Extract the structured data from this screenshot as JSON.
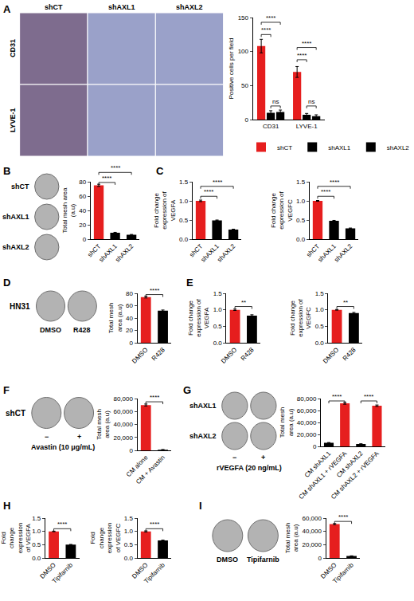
{
  "panel_letters": [
    "A",
    "B",
    "C",
    "D",
    "E",
    "F",
    "G",
    "H",
    "I"
  ],
  "images": [
    {
      "kind": "ihc",
      "rows": [
        "CD31",
        "LYVE-1"
      ],
      "columns": [
        "shCT",
        "shAXL1",
        "shAXL2"
      ]
    },
    {
      "kind": "tube",
      "rows": [
        "shCT",
        "shAXL1",
        "shAXL2"
      ]
    },
    {
      "kind": "tube",
      "side_label": "HN31",
      "columns": [
        "DMSO",
        "R428"
      ]
    },
    {
      "kind": "tube",
      "side_label": "shCT",
      "columns": [
        "−",
        "+"
      ],
      "caption": "Avastin (10 μg/mL)"
    },
    {
      "kind": "tube",
      "rows": [
        "shAXL1",
        "shAXL2"
      ],
      "columns": [
        "−",
        "+"
      ],
      "caption": "rVEGFA (20 ng/mL)"
    },
    {
      "kind": "tube",
      "columns": [
        "DMSO",
        "Tipifarnib"
      ]
    }
  ],
  "chart_data": [
    {
      "type": "bar",
      "categories": [
        "CD31",
        "LYVE-1"
      ],
      "series": [
        {
          "name": "shCT",
          "color": "#e61e1e",
          "values": [
            108,
            70
          ],
          "errors": [
            10,
            8
          ]
        },
        {
          "name": "shAXL1",
          "color": "#000000",
          "values": [
            10,
            7
          ],
          "errors": [
            3,
            2
          ]
        },
        {
          "name": "shAXL2",
          "color": "#000000",
          "values": [
            11,
            5
          ],
          "errors": [
            3,
            2
          ]
        }
      ],
      "legend": "bottom",
      "y_label": "Positive cells per field",
      "ylim": [
        0,
        150
      ],
      "yticks": [
        0,
        50,
        100,
        150
      ],
      "significance": [
        {
          "category": "CD31",
          "from": "shCT",
          "to": "shAXL1",
          "y": 125,
          "text": "****"
        },
        {
          "category": "CD31",
          "from": "shCT",
          "to": "shAXL2",
          "y": 143,
          "text": "****"
        },
        {
          "category": "CD31",
          "from": "shAXL1",
          "to": "shAXL2",
          "y": 20,
          "text": "ns"
        },
        {
          "category": "LYVE-1",
          "from": "shCT",
          "to": "shAXL1",
          "y": 88,
          "text": "****"
        },
        {
          "category": "LYVE-1",
          "from": "shCT",
          "to": "shAXL2",
          "y": 106,
          "text": "****"
        },
        {
          "category": "LYVE-1",
          "from": "shAXL1",
          "to": "shAXL2",
          "y": 20,
          "text": "ns"
        }
      ]
    },
    {
      "type": "bar",
      "categories": [
        "shCT",
        "shAXL1",
        "shAXL2"
      ],
      "values": [
        75,
        9,
        6
      ],
      "errors": [
        1.5,
        0.5,
        0.5
      ],
      "colors": [
        "#e61e1e",
        "#000000",
        "#000000"
      ],
      "y_label": "Total mesh area (a.u)",
      "ylim": [
        0,
        80
      ],
      "yticks": [
        0,
        20,
        40,
        60,
        80
      ],
      "significance": [
        {
          "from": "shCT",
          "to": "shAXL1",
          "y": 79,
          "text": "****"
        },
        {
          "from": "shCT",
          "to": "shAXL2",
          "y": 93,
          "text": "****"
        }
      ]
    },
    {
      "type": "bar",
      "categories": [
        "shCT",
        "shAXL1",
        "shAXL2"
      ],
      "values": [
        1.0,
        0.49,
        0.25
      ],
      "errors": [
        0.02,
        0.01,
        0.01
      ],
      "colors": [
        "#e61e1e",
        "#000000",
        "#000000"
      ],
      "y_label": "Fold change expression of VEGFA",
      "ylim": [
        0,
        1.5
      ],
      "yticks": [
        {
          "value": 0,
          "label": "0.0"
        },
        0.5,
        {
          "value": 1,
          "label": "1.0"
        },
        1.5
      ],
      "significance": [
        {
          "from": "shCT",
          "to": "shAXL1",
          "y": 1.12,
          "text": "****"
        },
        {
          "from": "shCT",
          "to": "shAXL2",
          "y": 1.38,
          "text": "****"
        }
      ]
    },
    {
      "type": "bar",
      "categories": [
        "shCT",
        "shAXL1",
        "shAXL2"
      ],
      "values": [
        1.0,
        0.48,
        0.28
      ],
      "errors": [
        0.01,
        0.01,
        0.01
      ],
      "colors": [
        "#e61e1e",
        "#000000",
        "#000000"
      ],
      "y_label": "Fold change expression of VEGFC",
      "ylim": [
        0,
        1.5
      ],
      "yticks": [
        {
          "value": 0,
          "label": "0.0"
        },
        0.5,
        {
          "value": 1,
          "label": "1.0"
        },
        1.5
      ],
      "significance": [
        {
          "from": "shCT",
          "to": "shAXL1",
          "y": 1.12,
          "text": "****"
        },
        {
          "from": "shCT",
          "to": "shAXL2",
          "y": 1.38,
          "text": "****"
        }
      ]
    },
    {
      "type": "bar",
      "categories": [
        "DMSO",
        "R428"
      ],
      "values": [
        74,
        52
      ],
      "errors": [
        1.5,
        1
      ],
      "colors": [
        "#e61e1e",
        "#000000"
      ],
      "y_label": "Total mesh area (a.u)",
      "ylim": [
        0,
        80
      ],
      "yticks": [
        0,
        20,
        40,
        60,
        80
      ],
      "significance": [
        {
          "from": "DMSO",
          "to": "R428",
          "y": 78,
          "text": "****"
        }
      ]
    },
    {
      "type": "bar",
      "categories": [
        "DMSO",
        "R428"
      ],
      "values": [
        1.0,
        0.82
      ],
      "errors": [
        0.02,
        0.03
      ],
      "colors": [
        "#e61e1e",
        "#000000"
      ],
      "y_label": "Fold change expression of VEGFA",
      "ylim": [
        0,
        1.5
      ],
      "yticks": [
        {
          "value": 0,
          "label": "0.0"
        },
        0.5,
        {
          "value": 1,
          "label": "1.0"
        },
        1.5
      ],
      "significance": [
        {
          "from": "DMSO",
          "to": "R428",
          "y": 1.1,
          "text": "**"
        }
      ]
    },
    {
      "type": "bar",
      "categories": [
        "DMSO",
        "R428"
      ],
      "values": [
        1.0,
        0.9
      ],
      "errors": [
        0.01,
        0.02
      ],
      "colors": [
        "#e61e1e",
        "#000000"
      ],
      "y_label": "Fold change expression of VEGFC",
      "ylim": [
        0,
        1.5
      ],
      "yticks": [
        {
          "value": 0,
          "label": "0.0"
        },
        0.5,
        {
          "value": 1,
          "label": "1.0"
        },
        1.5
      ],
      "significance": [
        {
          "from": "DMSO",
          "to": "R428",
          "y": 1.1,
          "text": "**"
        }
      ]
    },
    {
      "type": "bar",
      "categories": [
        "CM alone",
        "CM + Avastin"
      ],
      "values": [
        70000,
        1000
      ],
      "errors": [
        1500,
        200
      ],
      "colors": [
        "#e61e1e",
        "#000000"
      ],
      "y_label": "Total mesh area (a.u)",
      "ylim": [
        0,
        80000
      ],
      "yticks": [
        0,
        {
          "value": 20000,
          "label": "20,000"
        },
        {
          "value": 40000,
          "label": "40,000"
        },
        {
          "value": 60000,
          "label": "60,000"
        },
        {
          "value": 80000,
          "label": "80,000"
        }
      ],
      "significance": [
        {
          "from": "CM alone",
          "to": "CM + Avastin",
          "y": 75000,
          "text": "****"
        }
      ]
    },
    {
      "type": "bar",
      "categories": [
        "CM shAXL1",
        "CM shAXL1 + rVEGFA",
        "CM shAXL2",
        "CM shAXL2 + rVEGFA"
      ],
      "values": [
        6000,
        72000,
        4000,
        68000
      ],
      "errors": [
        400,
        1500,
        300,
        1200
      ],
      "colors": [
        "#000000",
        "#e61e1e",
        "#000000",
        "#e61e1e"
      ],
      "y_label": "Total mesh area (a.u)",
      "ylim": [
        0,
        80000
      ],
      "yticks": [
        0,
        {
          "value": 20000,
          "label": "20,000"
        },
        {
          "value": 40000,
          "label": "40,000"
        },
        {
          "value": 60000,
          "label": "60,000"
        },
        {
          "value": 80000,
          "label": "80,000"
        }
      ],
      "significance": [
        {
          "from": "CM shAXL1",
          "to": "CM shAXL1 + rVEGFA",
          "y": 76000,
          "text": "****"
        },
        {
          "from": "CM shAXL2",
          "to": "CM shAXL2 + rVEGFA",
          "y": 76000,
          "text": "****"
        }
      ]
    },
    {
      "type": "bar",
      "categories": [
        "DMSO",
        "Tipifarnib"
      ],
      "values": [
        1.0,
        0.5
      ],
      "errors": [
        0.01,
        0.01
      ],
      "colors": [
        "#e61e1e",
        "#000000"
      ],
      "y_label": "Fold change expression of VEGFA",
      "ylim": [
        0,
        1.5
      ],
      "yticks": [
        {
          "value": 0,
          "label": "0.0"
        },
        0.5,
        {
          "value": 1,
          "label": "1.0"
        },
        1.5
      ],
      "significance": [
        {
          "from": "DMSO",
          "to": "Tipifarnib",
          "y": 1.1,
          "text": "****"
        }
      ]
    },
    {
      "type": "bar",
      "categories": [
        "DMSO",
        "Tipifarnib"
      ],
      "values": [
        1.0,
        0.66
      ],
      "errors": [
        0.02,
        0.01
      ],
      "colors": [
        "#e61e1e",
        "#000000"
      ],
      "y_label": "Fold change expression of VEGFC",
      "ylim": [
        0,
        1.5
      ],
      "yticks": [
        {
          "value": 0,
          "label": "0.0"
        },
        0.5,
        {
          "value": 1,
          "label": "1.0"
        },
        1.5
      ],
      "significance": [
        {
          "from": "DMSO",
          "to": "Tipifarnib",
          "y": 1.1,
          "text": "****"
        }
      ]
    },
    {
      "type": "bar",
      "categories": [
        "DMSO",
        "Tipifarnib"
      ],
      "values": [
        51000,
        3000
      ],
      "errors": [
        800,
        200
      ],
      "colors": [
        "#e61e1e",
        "#000000"
      ],
      "y_label": "Total mesh area (a.u)",
      "ylim": [
        0,
        60000
      ],
      "yticks": [
        0,
        {
          "value": 20000,
          "label": "20,000"
        },
        {
          "value": 40000,
          "label": "40,000"
        },
        {
          "value": 60000,
          "label": "60,000"
        }
      ],
      "significance": [
        {
          "from": "DMSO",
          "to": "Tipifarnib",
          "y": 55000,
          "text": "****"
        }
      ]
    }
  ]
}
